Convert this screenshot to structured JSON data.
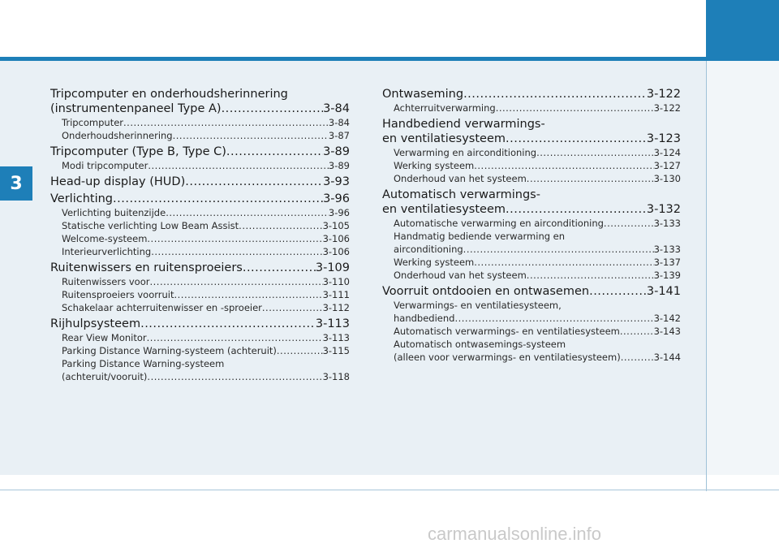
{
  "chapter": "3",
  "left": {
    "h1_line1": "Tripcomputer en onderhoudsherinnering",
    "h1_line2": "(instrumentenpaneel Type A)",
    "h1_page": "3-84",
    "s1a": "Tripcomputer",
    "s1a_page": "3-84",
    "s1b": "Onderhoudsherinnering",
    "s1b_page": "3-87",
    "h2": "Tripcomputer (Type B, Type C)",
    "h2_page": "3-89",
    "s2a": "Modi tripcomputer",
    "s2a_page": "3-89",
    "h3": "Head-up display (HUD)",
    "h3_page": "3-93",
    "h4": "Verlichting",
    "h4_page": "3-96",
    "s4a": "Verlichting buitenzijde",
    "s4a_page": "3-96",
    "s4b": "Statische verlichting Low Beam Assist",
    "s4b_page": "3-105",
    "s4c": "Welcome-systeem",
    "s4c_page": "3-106",
    "s4d": "Interieurverlichting",
    "s4d_page": "3-106",
    "h5": "Ruitenwissers en ruitensproeiers",
    "h5_page": "3-109",
    "s5a": "Ruitenwissers voor",
    "s5a_page": "3-110",
    "s5b": "Ruitensproeiers voorruit",
    "s5b_page": "3-111",
    "s5c": "Schakelaar achterruitenwisser en -sproeier",
    "s5c_page": "3-112",
    "h6": "Rijhulpsysteem",
    "h6_page": "3-113",
    "s6a": "Rear View Monitor",
    "s6a_page": "3-113",
    "s6b": "Parking Distance Warning-systeem (achteruit)",
    "s6b_page": "3-115",
    "s6c_line1": "Parking Distance Warning-systeem",
    "s6c_line2": "(achteruit/vooruit)",
    "s6c_page": "3-118"
  },
  "right": {
    "h1": "Ontwaseming",
    "h1_page": "3-122",
    "s1a": "Achterruitverwarming",
    "s1a_page": "3-122",
    "h2_line1": "Handbediend verwarmings-",
    "h2_line2": "en ventilatiesysteem",
    "h2_page": "3-123",
    "s2a": "Verwarming en airconditioning",
    "s2a_page": "3-124",
    "s2b": "Werking systeem",
    "s2b_page": "3-127",
    "s2c": "Onderhoud van het systeem",
    "s2c_page": "3-130",
    "h3_line1": "Automatisch verwarmings-",
    "h3_line2": "en ventilatiesysteem",
    "h3_page": "3-132",
    "s3a": "Automatische verwarming en airconditioning",
    "s3a_page": "3-133",
    "s3b_line1": "Handmatig bediende verwarming en",
    "s3b_line2": "airconditioning",
    "s3b_page": "3-133",
    "s3c": "Werking systeem",
    "s3c_page": "3-137",
    "s3d": "Onderhoud van het systeem",
    "s3d_page": "3-139",
    "h4": "Voorruit ontdooien en ontwasemen",
    "h4_page": "3-141",
    "s4a_line1": "Verwarmings- en ventilatiesysteem,",
    "s4a_line2": "handbediend",
    "s4a_page": "3-142",
    "s4b": "Automatisch verwarmings- en ventilatiesysteem",
    "s4b_page": "3-143",
    "s4c_line1": "Automatisch ontwasemings-systeem",
    "s4c_line2": "(alleen voor verwarmings- en ventilatiesysteem)",
    "s4c_page": "3-144"
  },
  "watermark": "carmanualsonline.info"
}
